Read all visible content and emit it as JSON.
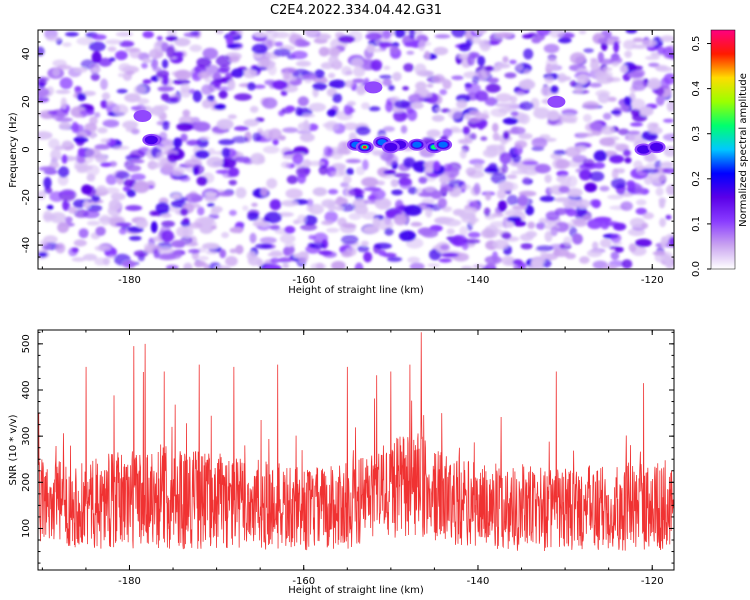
{
  "title": "C2E4.2022.334.04.42.G31",
  "chart_data": [
    {
      "type": "heatmap",
      "xlabel": "Height of straight line (km)",
      "ylabel": "Frequency (Hz)",
      "xlim": [
        -190.5,
        -117.5
      ],
      "ylim": [
        -50,
        50
      ],
      "x_ticks": [
        "-180",
        "-160",
        "-140",
        "-120"
      ],
      "x_tick_values": [
        -180,
        -160,
        -140,
        -120
      ],
      "y_ticks": [
        "-40",
        "-20",
        "0",
        "20",
        "40"
      ],
      "y_tick_values": [
        -40,
        -20,
        0,
        20,
        40
      ],
      "colorbar": {
        "label": "Normalized spectral amplitude",
        "range": [
          0,
          0.53
        ],
        "ticks": [
          "0.0",
          "0.1",
          "0.2",
          "0.3",
          "0.4",
          "0.5"
        ],
        "tick_values": [
          0.0,
          0.1,
          0.2,
          0.3,
          0.4,
          0.5
        ],
        "colormap": [
          "#ffffff",
          "#c9a3f0",
          "#8a3cff",
          "#5a00e8",
          "#0000ff",
          "#00c8ff",
          "#00ff6e",
          "#9bff00",
          "#ffdc00",
          "#ff1a00",
          "#ff0080"
        ]
      },
      "hotspots": [
        {
          "x": -154,
          "y": 2,
          "value": 0.3
        },
        {
          "x": -153,
          "y": 1,
          "value": 0.5
        },
        {
          "x": -151,
          "y": 3,
          "value": 0.25
        },
        {
          "x": -149,
          "y": 2,
          "value": 0.22
        },
        {
          "x": -147,
          "y": 2,
          "value": 0.28
        },
        {
          "x": -145,
          "y": 1,
          "value": 0.4
        },
        {
          "x": -144,
          "y": 2,
          "value": 0.25
        },
        {
          "x": -150,
          "y": 1,
          "value": 0.2
        },
        {
          "x": -177.5,
          "y": 4,
          "value": 0.2
        },
        {
          "x": -178.5,
          "y": 14,
          "value": 0.15
        },
        {
          "x": -121,
          "y": 0,
          "value": 0.22
        },
        {
          "x": -119.5,
          "y": 1,
          "value": 0.18
        },
        {
          "x": -152,
          "y": 26,
          "value": 0.12
        },
        {
          "x": -131,
          "y": 20,
          "value": 0.1
        }
      ],
      "grid": false
    },
    {
      "type": "line",
      "xlabel": "Height of straight line (km)",
      "ylabel": "SNR (10 * v/v)",
      "xlim": [
        -190.5,
        -117.5
      ],
      "ylim": [
        10,
        530
      ],
      "x_ticks": [
        "-180",
        "-160",
        "-140",
        "-120"
      ],
      "x_tick_values": [
        -180,
        -160,
        -140,
        -120
      ],
      "y_ticks": [
        "100",
        "200",
        "300",
        "400",
        "500"
      ],
      "y_tick_values": [
        100,
        200,
        300,
        400,
        500
      ],
      "series": [
        {
          "color": "#f03232",
          "baseline_envelope": {
            "x": [
              -190,
              -185,
              -180,
              -175,
              -170,
              -165,
              -160,
              -155,
              -150,
              -147,
              -145,
              -140,
              -135,
              -130,
              -125,
              -120,
              -118
            ],
            "mean": [
              160,
              150,
              165,
              170,
              160,
              150,
              140,
              150,
              185,
              195,
              170,
              150,
              145,
              140,
              145,
              150,
              140
            ],
            "spread": [
              90,
              95,
              110,
              115,
              105,
              100,
              90,
              95,
              110,
              120,
              100,
              95,
              95,
              90,
              95,
              100,
              90
            ]
          },
          "peaks": [
            {
              "x": -178.2,
              "y": 500
            },
            {
              "x": -179.5,
              "y": 495
            },
            {
              "x": -146.5,
              "y": 525
            },
            {
              "x": -147.8,
              "y": 455
            },
            {
              "x": -155,
              "y": 450
            },
            {
              "x": -185,
              "y": 450
            },
            {
              "x": -168,
              "y": 450
            },
            {
              "x": -172,
              "y": 455
            },
            {
              "x": -163,
              "y": 455
            },
            {
              "x": -121,
              "y": 415
            },
            {
              "x": -176,
              "y": 440
            },
            {
              "x": -150,
              "y": 440
            },
            {
              "x": -131,
              "y": 440
            }
          ]
        }
      ],
      "grid": false
    }
  ]
}
